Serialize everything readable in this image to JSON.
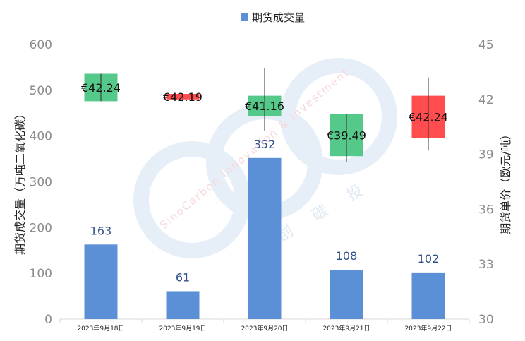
{
  "chart_data": {
    "type": "bar+candlestick",
    "legend": {
      "label": "期货成交量",
      "color": "#5b8fd6",
      "placement": "top-center"
    },
    "categories": [
      "2023年9月18日",
      "2023年9月19日",
      "2023年9月20日",
      "2023年9月21日",
      "2023年9月22日"
    ],
    "volume": {
      "name": "期货成交量",
      "axis": "left",
      "ylabel": "期货成交量（万吨二氧化碳）",
      "ylim": [
        0,
        600
      ],
      "ticks": [
        0,
        100,
        200,
        300,
        400,
        500,
        600
      ],
      "values": [
        163,
        61,
        352,
        108,
        102
      ],
      "labels": [
        "163",
        "61",
        "352",
        "108",
        "102"
      ],
      "color": "#5b8fd6"
    },
    "price": {
      "axis": "right",
      "ylabel": "期货单价（欧元/吨）",
      "ylim": [
        30,
        45
      ],
      "ticks": [
        30,
        33,
        36,
        39,
        42,
        45
      ],
      "candles": [
        {
          "open": 41.9,
          "close": 43.4,
          "high": 43.4,
          "low": 41.9,
          "label": "€42.24",
          "color": "#55c98a"
        },
        {
          "open": 42.3,
          "close": 42.0,
          "high": 42.3,
          "low": 41.9,
          "label": "€42.19",
          "color": "#ff4d4f"
        },
        {
          "open": 41.1,
          "close": 42.2,
          "high": 43.7,
          "low": 40.3,
          "label": "€41.16",
          "color": "#55c98a"
        },
        {
          "open": 38.9,
          "close": 41.2,
          "high": 41.2,
          "low": 38.6,
          "label": "€39.49",
          "color": "#55c98a"
        },
        {
          "open": 42.2,
          "close": 39.9,
          "high": 43.2,
          "low": 39.2,
          "label": "€42.24",
          "color": "#ff4d4f"
        }
      ]
    },
    "watermark": {
      "text1": "SinoCarbon Innovation & Investment",
      "text2": "创 碳 投"
    },
    "grid": false
  }
}
